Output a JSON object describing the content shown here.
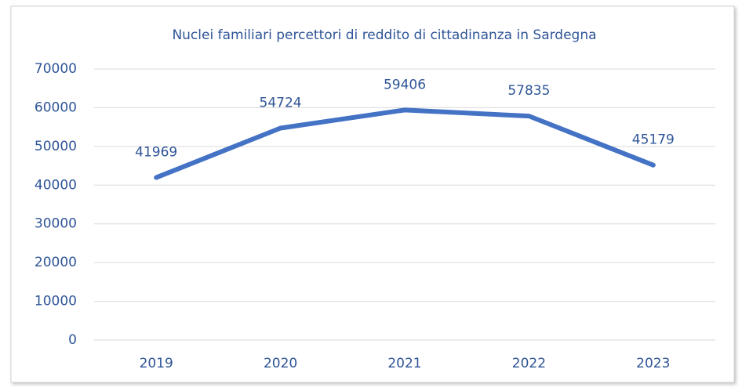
{
  "chart_data": {
    "type": "line",
    "title": "Nuclei familiari percettori di reddito di cittadinanza in Sardegna",
    "categories": [
      "2019",
      "2020",
      "2021",
      "2022",
      "2023"
    ],
    "series": [
      {
        "name": "Nuclei familiari",
        "color": "#4472c4",
        "values": [
          41969,
          54724,
          59406,
          57835,
          45179
        ]
      }
    ],
    "ylim": [
      0,
      70000
    ],
    "yticks": [
      0,
      10000,
      20000,
      30000,
      40000,
      50000,
      60000,
      70000
    ],
    "grid": true
  }
}
